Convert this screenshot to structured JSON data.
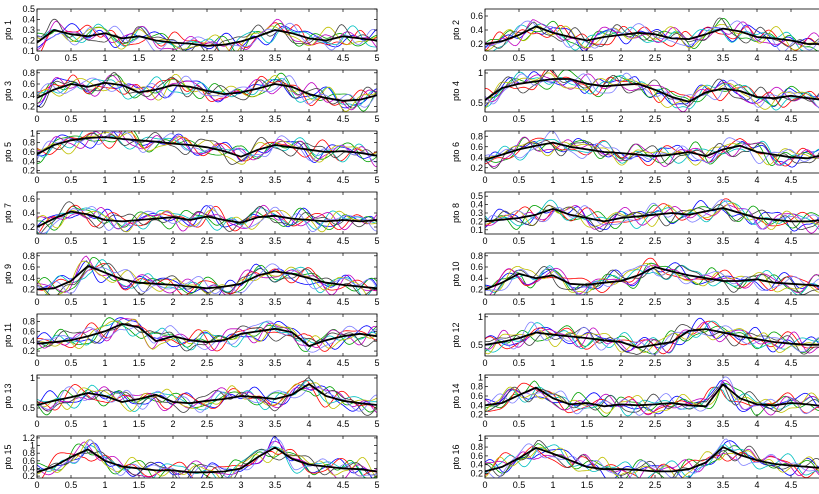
{
  "chart_data": {
    "type": "line",
    "x_ticks": [
      "0",
      "0.5",
      "1",
      "1.5",
      "2",
      "2.5",
      "3",
      "3.5",
      "4",
      "4.5",
      "5"
    ],
    "xlim": [
      0,
      5
    ],
    "grid": false,
    "series_per_panel": 8,
    "thin_colors": [
      "#0000ff",
      "#00a000",
      "#ff0000",
      "#00c0c0",
      "#c000c0",
      "#c0c000",
      "#404040",
      "#8080ff"
    ],
    "mean_color": "#000000",
    "panels": [
      {
        "ylabel": "pto 1",
        "ylim": [
          0.1,
          0.5
        ],
        "yticks": [
          "0.5",
          "0.4",
          "0.3",
          "0.2",
          "0.1"
        ],
        "mean": {
          "x": [
            0,
            0.25,
            0.5,
            0.75,
            1,
            1.25,
            1.5,
            1.75,
            2,
            2.25,
            2.5,
            2.75,
            3,
            3.25,
            3.5,
            3.75,
            4,
            4.25,
            4.5,
            4.75,
            5
          ],
          "y": [
            0.18,
            0.3,
            0.26,
            0.24,
            0.27,
            0.22,
            0.24,
            0.2,
            0.18,
            0.17,
            0.15,
            0.16,
            0.19,
            0.24,
            0.3,
            0.27,
            0.22,
            0.2,
            0.24,
            0.22,
            0.2
          ]
        }
      },
      {
        "ylabel": "pto 2",
        "ylim": [
          0.1,
          0.7
        ],
        "yticks": [
          "0.6",
          "0.4",
          "0.2"
        ],
        "mean": {
          "x": [
            0,
            0.25,
            0.5,
            0.75,
            1,
            1.25,
            1.5,
            1.75,
            2,
            2.25,
            2.5,
            2.75,
            3,
            3.25,
            3.5,
            3.75,
            4,
            4.25,
            4.5,
            4.75,
            5
          ],
          "y": [
            0.2,
            0.24,
            0.33,
            0.45,
            0.36,
            0.3,
            0.25,
            0.3,
            0.33,
            0.36,
            0.34,
            0.28,
            0.27,
            0.34,
            0.42,
            0.38,
            0.3,
            0.28,
            0.25,
            0.2,
            0.2
          ]
        }
      },
      {
        "ylabel": "pto 3",
        "ylim": [
          0.1,
          0.85
        ],
        "yticks": [
          "0.8",
          "0.6",
          "0.4",
          "0.2"
        ],
        "mean": {
          "x": [
            0,
            0.25,
            0.5,
            0.75,
            1,
            1.25,
            1.5,
            1.75,
            2,
            2.25,
            2.5,
            2.75,
            3,
            3.25,
            3.5,
            3.75,
            4,
            4.25,
            4.5,
            4.75,
            5
          ],
          "y": [
            0.35,
            0.5,
            0.6,
            0.55,
            0.62,
            0.58,
            0.45,
            0.5,
            0.58,
            0.55,
            0.48,
            0.42,
            0.45,
            0.52,
            0.6,
            0.55,
            0.42,
            0.35,
            0.3,
            0.32,
            0.4
          ]
        }
      },
      {
        "ylabel": "pto 4",
        "ylim": [
          0.35,
          1.05
        ],
        "yticks": [
          "1",
          "0.5"
        ],
        "mean": {
          "x": [
            0,
            0.25,
            0.5,
            0.75,
            1,
            1.25,
            1.5,
            1.75,
            2,
            2.25,
            2.5,
            2.75,
            3,
            3.25,
            3.5,
            3.75,
            4,
            4.25,
            4.5,
            4.75,
            5
          ],
          "y": [
            0.55,
            0.75,
            0.82,
            0.86,
            0.9,
            0.9,
            0.82,
            0.78,
            0.8,
            0.82,
            0.72,
            0.6,
            0.52,
            0.68,
            0.74,
            0.7,
            0.6,
            0.58,
            0.62,
            0.58,
            0.55
          ]
        }
      },
      {
        "ylabel": "pto 5",
        "ylim": [
          0.15,
          1.05
        ],
        "yticks": [
          "1",
          "0.8",
          "0.6",
          "0.4",
          "0.2"
        ],
        "mean": {
          "x": [
            0,
            0.25,
            0.5,
            0.75,
            1,
            1.25,
            1.5,
            1.75,
            2,
            2.25,
            2.5,
            2.75,
            3,
            3.25,
            3.5,
            3.75,
            4,
            4.25,
            4.5,
            4.75,
            5
          ],
          "y": [
            0.55,
            0.75,
            0.85,
            0.9,
            0.92,
            0.88,
            0.85,
            0.82,
            0.78,
            0.75,
            0.7,
            0.62,
            0.5,
            0.65,
            0.75,
            0.7,
            0.65,
            0.6,
            0.62,
            0.58,
            0.52
          ]
        }
      },
      {
        "ylabel": "pto 6",
        "ylim": [
          0.1,
          0.9
        ],
        "yticks": [
          "0.8",
          "0.6",
          "0.4",
          "0.2"
        ],
        "mean": {
          "x": [
            0,
            0.25,
            0.5,
            0.75,
            1,
            1.25,
            1.5,
            1.75,
            2,
            2.25,
            2.5,
            2.75,
            3,
            3.25,
            3.5,
            3.75,
            4,
            4.25,
            4.5,
            4.75,
            5
          ],
          "y": [
            0.35,
            0.45,
            0.55,
            0.62,
            0.68,
            0.6,
            0.55,
            0.5,
            0.48,
            0.45,
            0.42,
            0.45,
            0.5,
            0.42,
            0.55,
            0.62,
            0.5,
            0.45,
            0.4,
            0.38,
            0.45
          ]
        }
      },
      {
        "ylabel": "pto 7",
        "ylim": [
          0.1,
          0.7
        ],
        "yticks": [
          "0.6",
          "0.4",
          "0.2"
        ],
        "mean": {
          "x": [
            0,
            0.25,
            0.5,
            0.75,
            1,
            1.25,
            1.5,
            1.75,
            2,
            2.25,
            2.5,
            2.75,
            3,
            3.25,
            3.5,
            3.75,
            4,
            4.25,
            4.5,
            4.75,
            5
          ],
          "y": [
            0.2,
            0.32,
            0.42,
            0.38,
            0.3,
            0.28,
            0.3,
            0.32,
            0.34,
            0.3,
            0.35,
            0.3,
            0.26,
            0.34,
            0.36,
            0.32,
            0.3,
            0.28,
            0.3,
            0.28,
            0.3
          ]
        }
      },
      {
        "ylabel": "pto 8",
        "ylim": [
          0.05,
          0.55
        ],
        "yticks": [
          "0.5",
          "0.4",
          "0.3",
          "0.2",
          "0.1"
        ],
        "mean": {
          "x": [
            0,
            0.25,
            0.5,
            0.75,
            1,
            1.25,
            1.5,
            1.75,
            2,
            2.25,
            2.5,
            2.75,
            3,
            3.25,
            3.5,
            3.75,
            4,
            4.25,
            4.5,
            4.75,
            5
          ],
          "y": [
            0.2,
            0.22,
            0.24,
            0.28,
            0.35,
            0.28,
            0.24,
            0.2,
            0.24,
            0.26,
            0.28,
            0.3,
            0.28,
            0.32,
            0.36,
            0.3,
            0.24,
            0.22,
            0.2,
            0.2,
            0.22
          ]
        }
      },
      {
        "ylabel": "pto 9",
        "ylim": [
          0.1,
          0.85
        ],
        "yticks": [
          "0.8",
          "0.6",
          "0.4",
          "0.2"
        ],
        "mean": {
          "x": [
            0,
            0.25,
            0.5,
            0.75,
            1,
            1.25,
            1.5,
            1.75,
            2,
            2.25,
            2.5,
            2.75,
            3,
            3.25,
            3.5,
            3.75,
            4,
            4.25,
            4.5,
            4.75,
            5
          ],
          "y": [
            0.2,
            0.22,
            0.35,
            0.62,
            0.5,
            0.38,
            0.32,
            0.3,
            0.28,
            0.25,
            0.22,
            0.25,
            0.3,
            0.45,
            0.52,
            0.48,
            0.4,
            0.32,
            0.28,
            0.25,
            0.22
          ]
        }
      },
      {
        "ylabel": "pto 10",
        "ylim": [
          0.1,
          0.85
        ],
        "yticks": [
          "0.8",
          "0.6",
          "0.4",
          "0.2"
        ],
        "mean": {
          "x": [
            0,
            0.25,
            0.5,
            0.75,
            1,
            1.25,
            1.5,
            1.75,
            2,
            2.25,
            2.5,
            2.75,
            3,
            3.25,
            3.5,
            3.75,
            4,
            4.25,
            4.5,
            4.75,
            5
          ],
          "y": [
            0.2,
            0.32,
            0.48,
            0.4,
            0.45,
            0.3,
            0.28,
            0.32,
            0.35,
            0.45,
            0.6,
            0.52,
            0.45,
            0.4,
            0.35,
            0.35,
            0.38,
            0.32,
            0.3,
            0.28,
            0.25
          ]
        }
      },
      {
        "ylabel": "pto 11",
        "ylim": [
          0.1,
          0.95
        ],
        "yticks": [
          "0.8",
          "0.6",
          "0.4",
          "0.2"
        ],
        "mean": {
          "x": [
            0,
            0.25,
            0.5,
            0.75,
            1,
            1.25,
            1.5,
            1.75,
            2,
            2.25,
            2.5,
            2.75,
            3,
            3.25,
            3.5,
            3.75,
            4,
            4.25,
            4.5,
            4.75,
            5
          ],
          "y": [
            0.35,
            0.38,
            0.42,
            0.5,
            0.6,
            0.75,
            0.68,
            0.4,
            0.5,
            0.42,
            0.38,
            0.42,
            0.55,
            0.6,
            0.65,
            0.58,
            0.3,
            0.42,
            0.5,
            0.55,
            0.5
          ]
        }
      },
      {
        "ylabel": "pto 12",
        "ylim": [
          0.3,
          1.05
        ],
        "yticks": [
          "1",
          "0.5"
        ],
        "mean": {
          "x": [
            0,
            0.25,
            0.5,
            0.75,
            1,
            1.25,
            1.5,
            1.75,
            2,
            2.25,
            2.5,
            2.75,
            3,
            3.25,
            3.5,
            3.75,
            4,
            4.25,
            4.5,
            4.75,
            5
          ],
          "y": [
            0.5,
            0.55,
            0.62,
            0.72,
            0.68,
            0.65,
            0.62,
            0.58,
            0.55,
            0.45,
            0.5,
            0.55,
            0.75,
            0.78,
            0.72,
            0.65,
            0.6,
            0.55,
            0.52,
            0.5,
            0.5
          ]
        }
      },
      {
        "ylabel": "pto 13",
        "ylim": [
          0.35,
          1.05
        ],
        "yticks": [
          "1",
          "0.5"
        ],
        "mean": {
          "x": [
            0,
            0.25,
            0.5,
            0.75,
            1,
            1.25,
            1.5,
            1.75,
            2,
            2.25,
            2.5,
            2.75,
            3,
            3.25,
            3.5,
            3.75,
            4,
            4.25,
            4.5,
            4.75,
            5
          ],
          "y": [
            0.55,
            0.62,
            0.68,
            0.75,
            0.7,
            0.6,
            0.65,
            0.72,
            0.6,
            0.58,
            0.62,
            0.65,
            0.7,
            0.68,
            0.65,
            0.72,
            0.9,
            0.7,
            0.62,
            0.58,
            0.55
          ]
        }
      },
      {
        "ylabel": "pto 14",
        "ylim": [
          0.15,
          1.05
        ],
        "yticks": [
          "1",
          "0.8",
          "0.6",
          "0.4",
          "0.2"
        ],
        "mean": {
          "x": [
            0,
            0.25,
            0.5,
            0.75,
            1,
            1.25,
            1.5,
            1.75,
            2,
            2.25,
            2.5,
            2.75,
            3,
            3.25,
            3.5,
            3.75,
            4,
            4.25,
            4.5,
            4.75,
            5
          ],
          "y": [
            0.4,
            0.45,
            0.62,
            0.78,
            0.55,
            0.42,
            0.45,
            0.38,
            0.42,
            0.4,
            0.42,
            0.45,
            0.4,
            0.38,
            0.85,
            0.55,
            0.42,
            0.4,
            0.45,
            0.42,
            0.38
          ]
        }
      },
      {
        "ylabel": "pto 15",
        "ylim": [
          0.15,
          1.25
        ],
        "yticks": [
          "1.2",
          "1",
          "0.8",
          "0.6",
          "0.4",
          "0.2"
        ],
        "mean": {
          "x": [
            0,
            0.25,
            0.5,
            0.75,
            1,
            1.25,
            1.5,
            1.75,
            2,
            2.25,
            2.5,
            2.75,
            3,
            3.25,
            3.5,
            3.75,
            4,
            4.25,
            4.5,
            4.75,
            5
          ],
          "y": [
            0.3,
            0.45,
            0.7,
            0.9,
            0.6,
            0.45,
            0.4,
            0.35,
            0.35,
            0.3,
            0.3,
            0.32,
            0.4,
            0.7,
            0.95,
            0.65,
            0.5,
            0.45,
            0.4,
            0.38,
            0.32
          ]
        }
      },
      {
        "ylabel": "pto 16",
        "ylim": [
          0.1,
          1.05
        ],
        "yticks": [
          "1",
          "0.8",
          "0.6",
          "0.4",
          "0.2"
        ],
        "mean": {
          "x": [
            0,
            0.25,
            0.5,
            0.75,
            1,
            1.25,
            1.5,
            1.75,
            2,
            2.25,
            2.5,
            2.75,
            3,
            3.25,
            3.5,
            3.75,
            4,
            4.25,
            4.5,
            4.75,
            5
          ],
          "y": [
            0.25,
            0.35,
            0.55,
            0.78,
            0.65,
            0.5,
            0.35,
            0.3,
            0.3,
            0.28,
            0.25,
            0.25,
            0.3,
            0.45,
            0.8,
            0.62,
            0.5,
            0.42,
            0.38,
            0.35,
            0.32
          ]
        }
      }
    ]
  }
}
